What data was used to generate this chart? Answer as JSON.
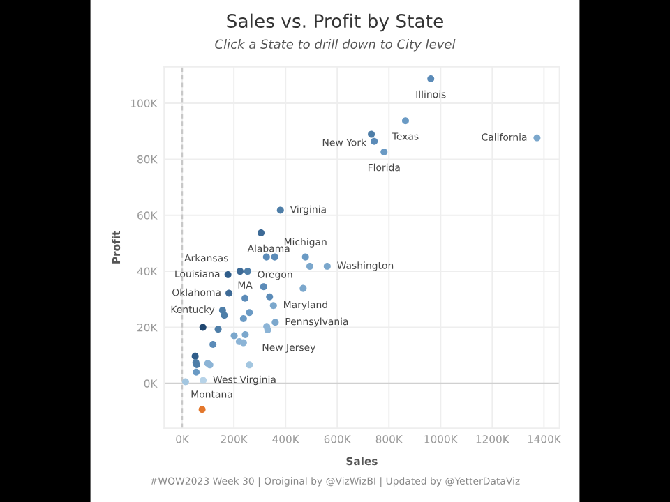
{
  "chart_data": {
    "type": "scatter",
    "title": "Sales vs. Profit by State",
    "subtitle": "Click a State to drill down to City level",
    "xlabel": "Sales",
    "ylabel": "Profit",
    "x": [
      962,
      864,
      732,
      743,
      781,
      1373,
      380,
      305,
      326,
      358,
      477,
      494,
      561,
      177,
      224,
      253,
      315,
      468,
      181,
      243,
      338,
      353,
      156,
      163,
      260,
      237,
      360,
      327,
      331,
      80,
      139,
      201,
      244,
      221,
      237,
      119,
      50,
      53,
      56,
      99,
      107,
      260,
      54,
      13,
      81,
      77
    ],
    "values": [
      108.7,
      93.7,
      88.9,
      86.4,
      82.6,
      87.6,
      61.8,
      53.7,
      45.1,
      45.1,
      45.1,
      41.8,
      41.8,
      38.8,
      40,
      40,
      34.5,
      33.9,
      32.2,
      30.4,
      30.9,
      27.8,
      26.1,
      24.3,
      25.3,
      23.1,
      21.8,
      20.3,
      19.1,
      20,
      19.3,
      17,
      17.4,
      14.9,
      14.5,
      13.9,
      9.7,
      7.4,
      6.7,
      7.1,
      6.6,
      6.6,
      4,
      0.6,
      1.1,
      -9.3
    ],
    "colors": [
      "#5b8bb8",
      "#6a9ac4",
      "#4e7ea8",
      "#5b8bb8",
      "#6a9ac4",
      "#7ba7cc",
      "#4e7ea8",
      "#3d6a96",
      "#5b8bb8",
      "#5b8bb8",
      "#6a9ac4",
      "#7ba7cc",
      "#7ba7cc",
      "#2f5d8a",
      "#3d6a96",
      "#4e7ea8",
      "#5b8bb8",
      "#7ba7cc",
      "#3d6a96",
      "#5b8bb8",
      "#5b8bb8",
      "#7ba7cc",
      "#4e7ea8",
      "#4e7ea8",
      "#6a9ac4",
      "#6a9ac4",
      "#7ba7cc",
      "#8cb4d6",
      "#8cb4d6",
      "#1f4670",
      "#4e7ea8",
      "#7ba7cc",
      "#7ba7cc",
      "#8cb4d6",
      "#8cb4d6",
      "#5b8bb8",
      "#2f5d8a",
      "#4e7ea8",
      "#4e7ea8",
      "#8cb4d6",
      "#8cb4d6",
      "#a3c6e0",
      "#6a9ac4",
      "#a3c6e0",
      "#b7d3e8",
      "#e3772c"
    ],
    "marker": "circle",
    "xlim": [
      -70,
      1460
    ],
    "ylim": [
      -16,
      113
    ],
    "xticks": [
      {
        "value": 0,
        "label": "0K"
      },
      {
        "value": 200,
        "label": "200K"
      },
      {
        "value": 400,
        "label": "400K"
      },
      {
        "value": 600,
        "label": "600K"
      },
      {
        "value": 800,
        "label": "800K"
      },
      {
        "value": 1000,
        "label": "1000K"
      },
      {
        "value": 1200,
        "label": "1200K"
      },
      {
        "value": 1400,
        "label": "1400K"
      }
    ],
    "yticks": [
      {
        "value": 0,
        "label": "0K"
      },
      {
        "value": 20,
        "label": "20K"
      },
      {
        "value": 40,
        "label": "40K"
      },
      {
        "value": 60,
        "label": "60K"
      },
      {
        "value": 80,
        "label": "80K"
      },
      {
        "value": 100,
        "label": "100K"
      }
    ],
    "grid": true,
    "ref_lines": [
      {
        "axis": "x",
        "value": 0,
        "label": null,
        "line_style": "dashed",
        "color": "#c8c8c8"
      },
      {
        "axis": "y",
        "value": 0,
        "label": null,
        "line_style": "solid",
        "color": "#d0d0d0"
      }
    ],
    "annotations": [
      {
        "text": "Illinois",
        "x": 962,
        "y": 108.7
      },
      {
        "text": "Texas",
        "x": 864,
        "y": 93.7
      },
      {
        "text": "New York",
        "x": 743,
        "y": 86.4
      },
      {
        "text": "Florida",
        "x": 781,
        "y": 82.6
      },
      {
        "text": "California",
        "x": 1373,
        "y": 87.6
      },
      {
        "text": "Virginia",
        "x": 380,
        "y": 61.8
      },
      {
        "text": "Alabama",
        "x": 305,
        "y": 53.7
      },
      {
        "text": "Michigan",
        "x": 477,
        "y": 45.1
      },
      {
        "text": "Washington",
        "x": 561,
        "y": 41.8
      },
      {
        "text": "Arkansas",
        "x": 224,
        "y": 40
      },
      {
        "text": "Louisiana",
        "x": 177,
        "y": 38.8
      },
      {
        "text": "Oregon",
        "x": 253,
        "y": 40
      },
      {
        "text": "MA",
        "x": 243,
        "y": 30.4
      },
      {
        "text": "Oklahoma",
        "x": 181,
        "y": 32.2
      },
      {
        "text": "Maryland",
        "x": 353,
        "y": 27.8
      },
      {
        "text": "Kentucky",
        "x": 156,
        "y": 26.1
      },
      {
        "text": "Pennsylvania",
        "x": 360,
        "y": 21.8
      },
      {
        "text": "New Jersey",
        "x": 331,
        "y": 19.1
      },
      {
        "text": "West Virginia",
        "x": 81,
        "y": 1.1
      },
      {
        "text": "Montana",
        "x": 77,
        "y": -9.3
      },
      "#WOW2023 Week 30 | Oroiginal by @VizWizBI | Updated by @YetterDataViz"
    ]
  }
}
